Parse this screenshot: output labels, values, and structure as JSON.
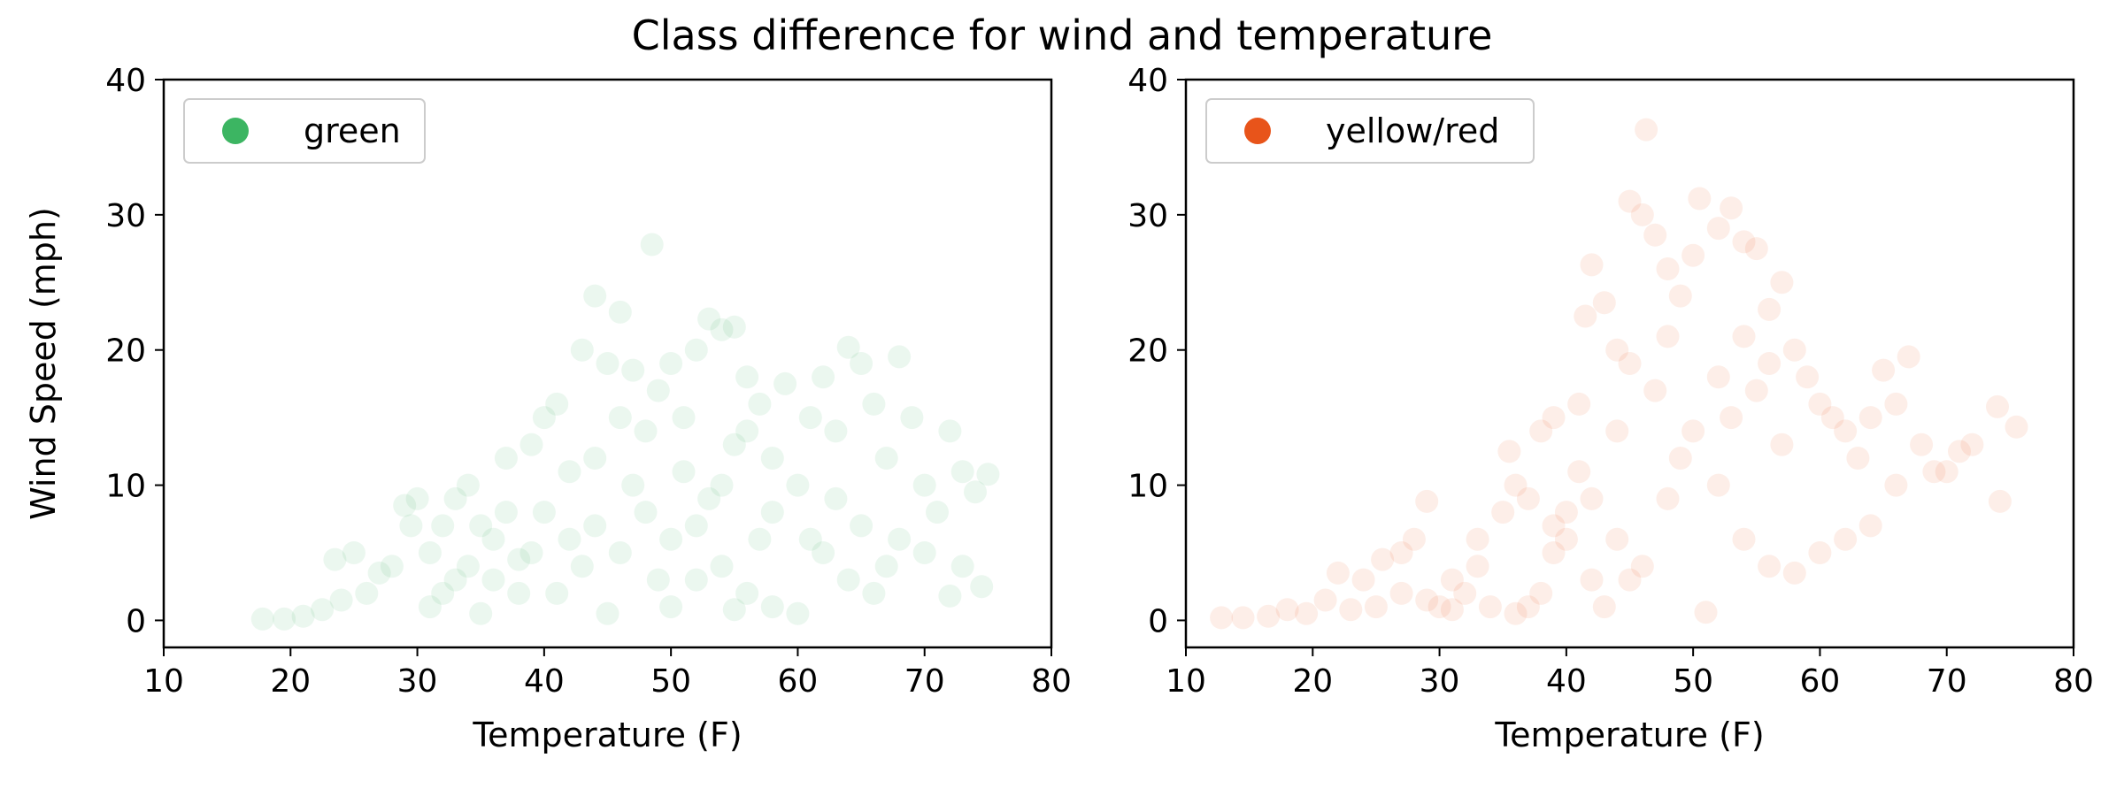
{
  "figure_title": "Class difference for wind and temperature",
  "colors": {
    "green": "#3cb562",
    "orange": "#e8541a",
    "axis": "#000000",
    "legend_border": "#cccccc"
  },
  "chart_data": [
    {
      "type": "scatter",
      "title": "",
      "xlabel": "Temperature (F)",
      "ylabel": "Wind Speed (mph)",
      "xlim": [
        10,
        80
      ],
      "ylim": [
        -2,
        40
      ],
      "xticks": [
        10,
        20,
        30,
        40,
        50,
        60,
        70,
        80
      ],
      "yticks": [
        0,
        10,
        20,
        30,
        40
      ],
      "grid": false,
      "legend_placement": "top-left",
      "point_alpha": 0.1,
      "series": [
        {
          "name": "green",
          "color": "#3cb562",
          "points": [
            [
              17.8,
              0.1
            ],
            [
              19.5,
              0.1
            ],
            [
              21,
              0.3
            ],
            [
              22.5,
              0.8
            ],
            [
              23.5,
              4.5
            ],
            [
              25,
              5
            ],
            [
              24,
              1.5
            ],
            [
              26,
              2
            ],
            [
              27,
              3.5
            ],
            [
              28,
              4
            ],
            [
              29,
              8.5
            ],
            [
              29.5,
              7
            ],
            [
              30,
              9
            ],
            [
              31,
              5
            ],
            [
              32,
              2
            ],
            [
              33,
              9
            ],
            [
              34,
              10
            ],
            [
              35,
              7
            ],
            [
              36,
              3
            ],
            [
              37,
              12
            ],
            [
              38,
              4.5
            ],
            [
              39,
              13
            ],
            [
              40,
              15
            ],
            [
              41,
              16
            ],
            [
              42,
              11
            ],
            [
              43,
              20
            ],
            [
              44,
              24
            ],
            [
              45,
              19
            ],
            [
              46,
              22.8
            ],
            [
              47,
              18.5
            ],
            [
              48,
              14
            ],
            [
              48.5,
              27.8
            ],
            [
              49,
              17
            ],
            [
              50,
              19
            ],
            [
              51,
              15
            ],
            [
              52,
              20
            ],
            [
              53,
              22.3
            ],
            [
              54,
              21.5
            ],
            [
              55,
              21.7
            ],
            [
              56,
              18
            ],
            [
              57,
              16
            ],
            [
              58,
              12
            ],
            [
              59,
              17.5
            ],
            [
              60,
              10
            ],
            [
              61,
              15
            ],
            [
              62,
              18
            ],
            [
              63,
              14
            ],
            [
              64,
              20.2
            ],
            [
              65,
              19
            ],
            [
              66,
              16
            ],
            [
              67,
              12
            ],
            [
              68,
              19.5
            ],
            [
              69,
              15
            ],
            [
              70,
              10
            ],
            [
              71,
              8
            ],
            [
              72,
              14
            ],
            [
              73,
              11
            ],
            [
              74,
              9.5
            ],
            [
              75,
              10.8
            ],
            [
              73,
              4
            ],
            [
              74.5,
              2.5
            ],
            [
              72,
              1.8
            ],
            [
              70,
              5
            ],
            [
              68,
              6
            ],
            [
              66,
              2
            ],
            [
              64,
              3
            ],
            [
              62,
              5
            ],
            [
              60,
              0.5
            ],
            [
              58,
              1
            ],
            [
              56,
              2
            ],
            [
              54,
              4
            ],
            [
              52,
              3
            ],
            [
              50,
              6
            ],
            [
              48,
              8
            ],
            [
              46,
              5
            ],
            [
              44,
              7
            ],
            [
              42,
              6
            ],
            [
              40,
              8
            ],
            [
              38,
              2
            ],
            [
              36,
              6
            ],
            [
              34,
              4
            ],
            [
              32,
              7
            ],
            [
              31,
              1
            ],
            [
              35,
              0.5
            ],
            [
              45,
              0.5
            ],
            [
              50,
              1
            ],
            [
              55,
              0.8
            ],
            [
              57,
              6
            ],
            [
              53,
              9
            ],
            [
              47,
              10
            ],
            [
              43,
              4
            ],
            [
              39,
              5
            ],
            [
              41,
              2
            ],
            [
              49,
              3
            ],
            [
              51,
              11
            ],
            [
              55,
              13
            ],
            [
              58,
              8
            ],
            [
              61,
              6
            ],
            [
              63,
              9
            ],
            [
              65,
              7
            ],
            [
              67,
              4
            ],
            [
              33,
              3
            ],
            [
              37,
              8
            ],
            [
              44,
              12
            ],
            [
              46,
              15
            ],
            [
              52,
              7
            ],
            [
              54,
              10
            ],
            [
              56,
              14
            ]
          ]
        },
        {
          "name": "yellow/red",
          "color": "#e8541a",
          "points": [
            [
              12.8,
              0.2
            ],
            [
              14.5,
              0.2
            ],
            [
              16.5,
              0.3
            ],
            [
              18,
              0.8
            ],
            [
              19.5,
              0.5
            ],
            [
              21,
              1.5
            ],
            [
              22,
              3.5
            ],
            [
              24,
              3
            ],
            [
              25.5,
              4.5
            ],
            [
              27,
              5
            ],
            [
              28,
              6
            ],
            [
              29,
              8.8
            ],
            [
              30,
              1
            ],
            [
              31,
              0.8
            ],
            [
              32,
              2
            ],
            [
              33,
              4
            ],
            [
              34,
              1
            ],
            [
              35,
              8
            ],
            [
              35.5,
              12.5
            ],
            [
              36,
              10
            ],
            [
              37,
              9
            ],
            [
              38,
              14
            ],
            [
              39,
              7
            ],
            [
              40,
              6
            ],
            [
              41,
              16
            ],
            [
              41.5,
              22.5
            ],
            [
              42,
              26.3
            ],
            [
              43,
              23.5
            ],
            [
              44,
              20
            ],
            [
              45,
              31
            ],
            [
              46,
              30
            ],
            [
              46.3,
              36.3
            ],
            [
              47,
              28.5
            ],
            [
              48,
              26
            ],
            [
              49,
              24
            ],
            [
              50,
              27
            ],
            [
              50.5,
              31.2
            ],
            [
              52,
              29
            ],
            [
              53,
              30.5
            ],
            [
              54,
              28
            ],
            [
              55,
              27.5
            ],
            [
              56,
              23
            ],
            [
              57,
              25
            ],
            [
              58,
              20
            ],
            [
              59,
              18
            ],
            [
              60,
              16
            ],
            [
              61,
              15
            ],
            [
              62,
              14
            ],
            [
              63,
              12
            ],
            [
              64,
              15
            ],
            [
              65,
              18.5
            ],
            [
              66,
              16
            ],
            [
              67,
              19.5
            ],
            [
              68,
              13
            ],
            [
              69,
              11
            ],
            [
              71,
              12.5
            ],
            [
              72,
              13
            ],
            [
              74,
              15.8
            ],
            [
              75.5,
              14.3
            ],
            [
              74.2,
              8.8
            ],
            [
              70,
              11
            ],
            [
              66,
              10
            ],
            [
              64,
              7
            ],
            [
              62,
              6
            ],
            [
              60,
              5
            ],
            [
              58,
              3.5
            ],
            [
              56,
              4
            ],
            [
              54,
              6
            ],
            [
              52,
              10
            ],
            [
              50,
              14
            ],
            [
              48,
              9
            ],
            [
              46,
              4
            ],
            [
              45,
              3
            ],
            [
              44,
              6
            ],
            [
              43,
              1
            ],
            [
              42,
              3
            ],
            [
              40,
              8
            ],
            [
              39,
              5
            ],
            [
              38,
              2
            ],
            [
              37,
              1
            ],
            [
              36,
              0.5
            ],
            [
              51,
              0.6
            ],
            [
              55,
              17
            ],
            [
              53,
              15
            ],
            [
              57,
              13
            ],
            [
              49,
              12
            ],
            [
              47,
              17
            ],
            [
              45,
              19
            ],
            [
              41,
              11
            ],
            [
              39,
              15
            ],
            [
              33,
              6
            ],
            [
              31,
              3
            ],
            [
              29,
              1.5
            ],
            [
              27,
              2
            ],
            [
              25,
              1
            ],
            [
              23,
              0.8
            ],
            [
              54,
              21
            ],
            [
              52,
              18
            ],
            [
              56,
              19
            ],
            [
              48,
              21
            ],
            [
              44,
              14
            ],
            [
              42,
              9
            ]
          ]
        }
      ]
    }
  ]
}
